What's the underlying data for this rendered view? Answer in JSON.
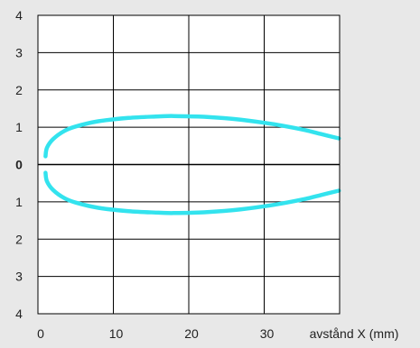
{
  "chart_data": {
    "type": "line",
    "title": "",
    "xlabel": "avstånd X (mm)",
    "ylabel": "",
    "xlim": [
      0,
      40
    ],
    "ylim": [
      -4,
      4
    ],
    "x_ticks": [
      0,
      10,
      20,
      30
    ],
    "y_ticks": [
      {
        "value": 4,
        "label": "4",
        "bold": false
      },
      {
        "value": 3,
        "label": "3",
        "bold": false
      },
      {
        "value": 2,
        "label": "2",
        "bold": false
      },
      {
        "value": 1,
        "label": "1",
        "bold": false
      },
      {
        "value": 0,
        "label": "0",
        "bold": true
      },
      {
        "value": -1,
        "label": "1",
        "bold": false
      },
      {
        "value": -2,
        "label": "2",
        "bold": false
      },
      {
        "value": -3,
        "label": "3",
        "bold": false
      },
      {
        "value": -4,
        "label": "4",
        "bold": false
      }
    ],
    "grid": true,
    "curve_color": "#33e3ee",
    "series": [
      {
        "x": [
          1.0,
          1.2,
          2.0,
          3.5,
          5.0,
          8.0,
          12.0,
          16.0,
          18.0,
          22.0,
          26.0,
          30.0,
          33.0,
          35.5,
          37.5,
          39.9
        ],
        "y": [
          0.22,
          0.45,
          0.68,
          0.9,
          1.02,
          1.16,
          1.25,
          1.29,
          1.3,
          1.28,
          1.22,
          1.12,
          1.02,
          0.92,
          0.82,
          0.7
        ]
      },
      {
        "x": [
          1.0,
          1.2,
          2.0,
          3.5,
          5.0,
          8.0,
          12.0,
          16.0,
          18.0,
          22.0,
          26.0,
          30.0,
          33.0,
          35.5,
          37.5,
          39.9
        ],
        "y": [
          -0.22,
          -0.45,
          -0.68,
          -0.9,
          -1.02,
          -1.16,
          -1.25,
          -1.29,
          -1.3,
          -1.28,
          -1.22,
          -1.12,
          -1.02,
          -0.92,
          -0.82,
          -0.7
        ]
      }
    ]
  }
}
